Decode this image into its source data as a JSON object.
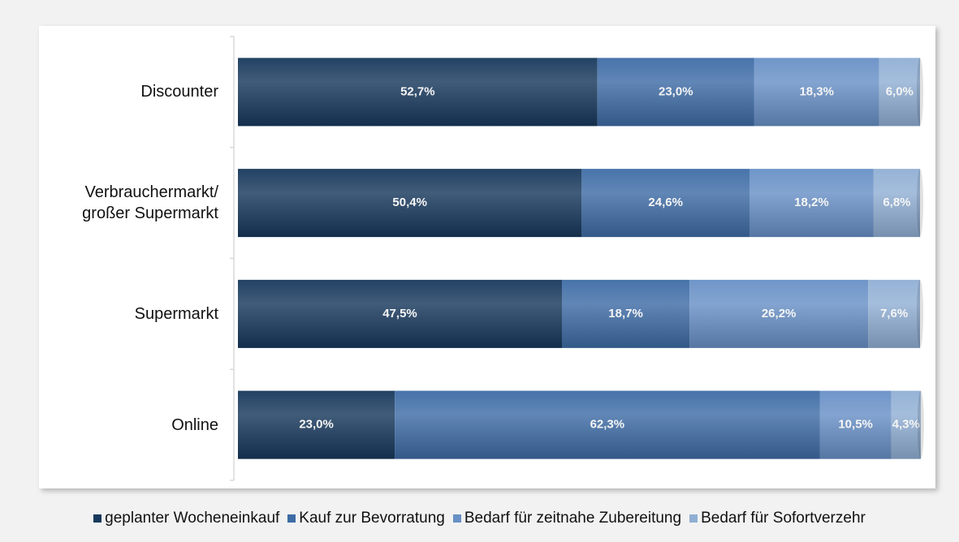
{
  "chart_data": {
    "type": "stacked_barh",
    "categories": [
      "Discounter",
      "Verbrauchermarkt/\ngroßer Supermarkt",
      "Supermarkt",
      "Online"
    ],
    "xlim": [
      0,
      100
    ],
    "series": [
      {
        "name": "geplanter Wocheneinkauf",
        "color": "#17385c",
        "values": [
          52.7,
          50.4,
          47.5,
          23.0
        ],
        "value_labels": [
          "52,7%",
          "50,4%",
          "47,5%",
          "23,0%"
        ]
      },
      {
        "name": "Kauf zur Bevorratung",
        "color": "#3e6ca6",
        "values": [
          23.0,
          24.6,
          18.7,
          62.3
        ],
        "value_labels": [
          "23,0%",
          "24,6%",
          "18,7%",
          "62,3%"
        ]
      },
      {
        "name": "Bedarf für zeitnahe Zubereitung",
        "color": "#6890c6",
        "values": [
          18.3,
          18.2,
          26.2,
          10.5
        ],
        "value_labels": [
          "18,3%",
          "18,2%",
          "26,2%",
          "10,5%"
        ]
      },
      {
        "name": "Bedarf für Sofortverzehr",
        "color": "#90afd4",
        "values": [
          6.0,
          6.8,
          7.6,
          4.3
        ],
        "value_labels": [
          "6,0%",
          "6,8%",
          "7,6%",
          "4,3%"
        ]
      }
    ]
  }
}
